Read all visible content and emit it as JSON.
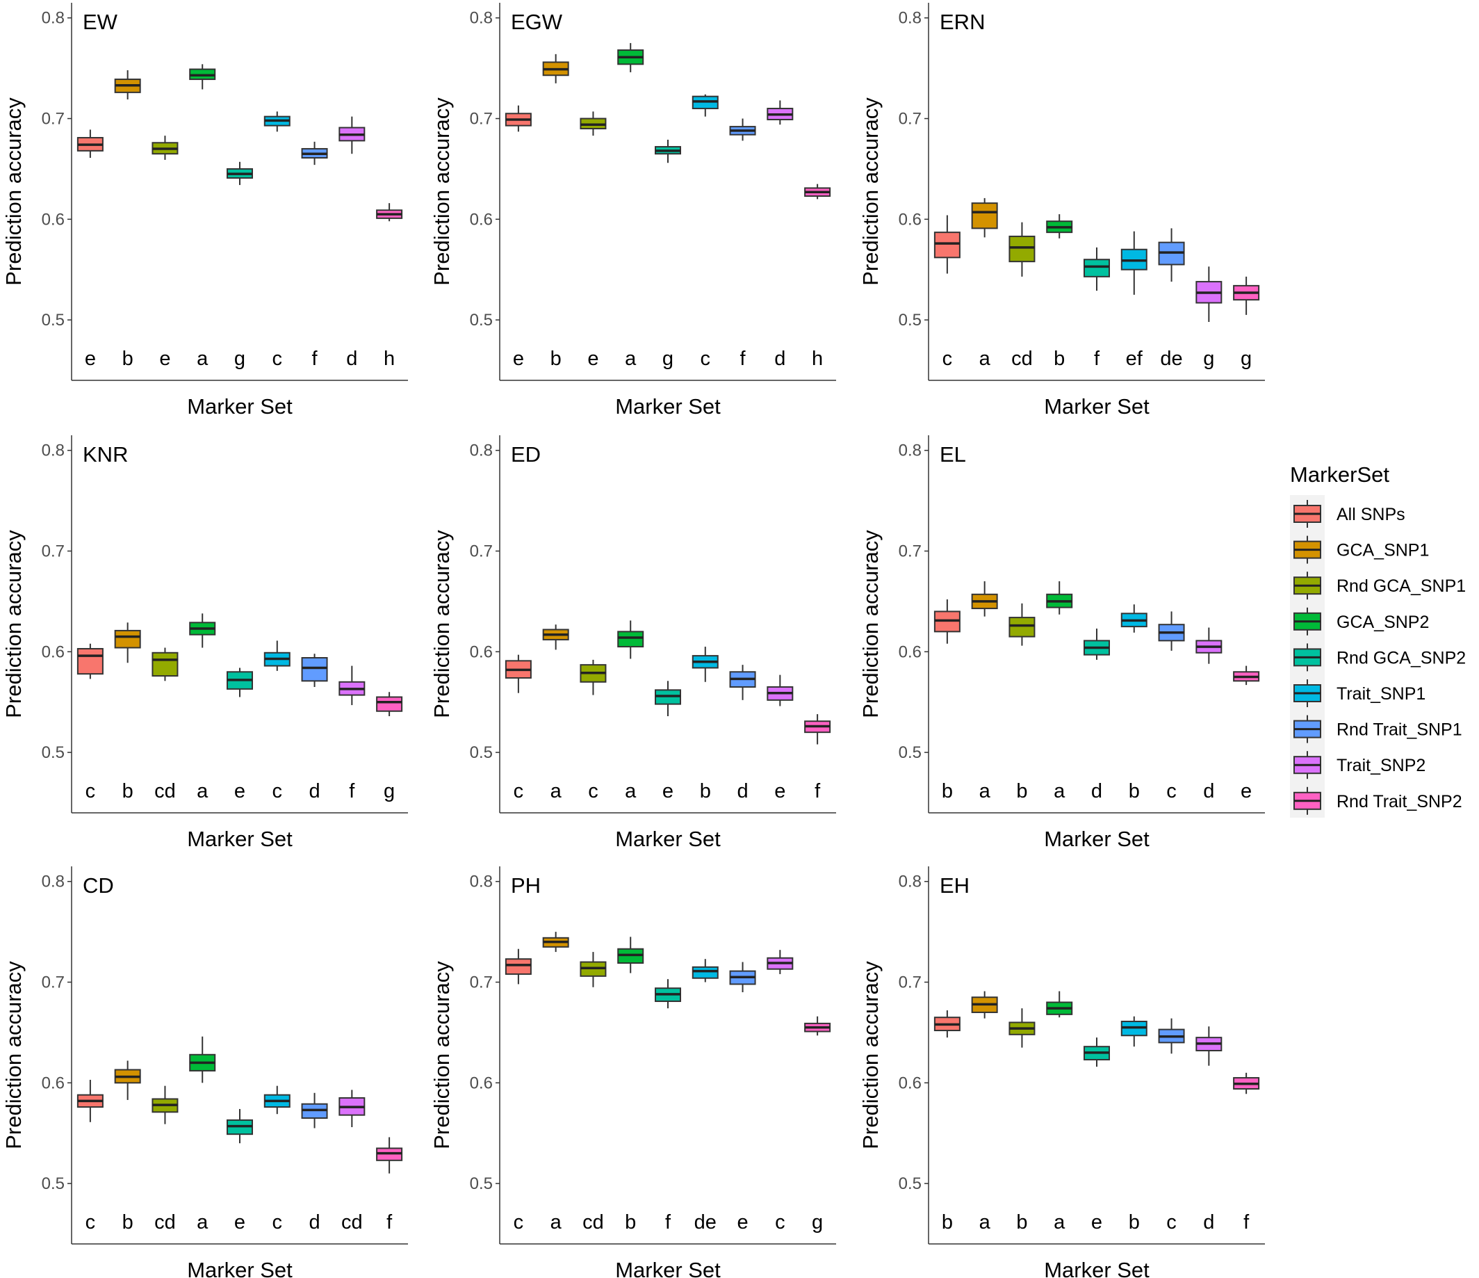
{
  "colors": [
    "#F8766D",
    "#D39200",
    "#93AA00",
    "#00BA38",
    "#00C19F",
    "#00B9E3",
    "#619CFF",
    "#DB72FB",
    "#FF61C3"
  ],
  "legend": {
    "title": "MarkerSet",
    "items": [
      "All SNPs",
      "GCA_SNP1",
      "Rnd GCA_SNP1",
      "GCA_SNP2",
      "Rnd GCA_SNP2",
      "Trait_SNP1",
      "Rnd Trait_SNP1",
      "Trait_SNP2",
      "Rnd Trait_SNP2"
    ]
  },
  "chart_data": [
    {
      "type": "boxplot",
      "title": "EW",
      "xlabel": "Marker Set",
      "ylabel": "Prediction accuracy",
      "ylim": [
        0.44,
        0.815
      ],
      "yticks": [
        0.5,
        0.6,
        0.7,
        0.8
      ],
      "series": [
        {
          "name": "All SNPs",
          "min": 0.661,
          "q1": 0.668,
          "median": 0.674,
          "q3": 0.681,
          "max": 0.689,
          "letter": "e"
        },
        {
          "name": "GCA_SNP1",
          "min": 0.719,
          "q1": 0.726,
          "median": 0.733,
          "q3": 0.739,
          "max": 0.748,
          "letter": "b"
        },
        {
          "name": "Rnd GCA_SNP1",
          "min": 0.659,
          "q1": 0.665,
          "median": 0.67,
          "q3": 0.676,
          "max": 0.683,
          "letter": "e"
        },
        {
          "name": "GCA_SNP2",
          "min": 0.729,
          "q1": 0.739,
          "median": 0.743,
          "q3": 0.749,
          "max": 0.754,
          "letter": "a"
        },
        {
          "name": "Rnd GCA_SNP2",
          "min": 0.634,
          "q1": 0.641,
          "median": 0.645,
          "q3": 0.65,
          "max": 0.657,
          "letter": "g"
        },
        {
          "name": "Trait_SNP1",
          "min": 0.687,
          "q1": 0.693,
          "median": 0.698,
          "q3": 0.702,
          "max": 0.707,
          "letter": "c"
        },
        {
          "name": "Rnd Trait_SNP1",
          "min": 0.654,
          "q1": 0.661,
          "median": 0.665,
          "q3": 0.67,
          "max": 0.677,
          "letter": "f"
        },
        {
          "name": "Trait_SNP2",
          "min": 0.665,
          "q1": 0.678,
          "median": 0.684,
          "q3": 0.691,
          "max": 0.702,
          "letter": "d"
        },
        {
          "name": "Rnd Trait_SNP2",
          "min": 0.598,
          "q1": 0.601,
          "median": 0.605,
          "q3": 0.609,
          "max": 0.616,
          "letter": "h"
        }
      ]
    },
    {
      "type": "boxplot",
      "title": "EGW",
      "xlabel": "Marker Set",
      "ylabel": "Prediction accuracy",
      "ylim": [
        0.44,
        0.815
      ],
      "yticks": [
        0.5,
        0.6,
        0.7,
        0.8
      ],
      "series": [
        {
          "name": "All SNPs",
          "min": 0.687,
          "q1": 0.693,
          "median": 0.699,
          "q3": 0.705,
          "max": 0.713,
          "letter": "e"
        },
        {
          "name": "GCA_SNP1",
          "min": 0.735,
          "q1": 0.743,
          "median": 0.749,
          "q3": 0.756,
          "max": 0.764,
          "letter": "b"
        },
        {
          "name": "Rnd GCA_SNP1",
          "min": 0.683,
          "q1": 0.69,
          "median": 0.694,
          "q3": 0.7,
          "max": 0.707,
          "letter": "e"
        },
        {
          "name": "GCA_SNP2",
          "min": 0.746,
          "q1": 0.754,
          "median": 0.761,
          "q3": 0.768,
          "max": 0.775,
          "letter": "a"
        },
        {
          "name": "Rnd GCA_SNP2",
          "min": 0.656,
          "q1": 0.665,
          "median": 0.668,
          "q3": 0.672,
          "max": 0.679,
          "letter": "g"
        },
        {
          "name": "Trait_SNP1",
          "min": 0.702,
          "q1": 0.71,
          "median": 0.717,
          "q3": 0.722,
          "max": 0.724,
          "letter": "c"
        },
        {
          "name": "Rnd Trait_SNP1",
          "min": 0.678,
          "q1": 0.684,
          "median": 0.688,
          "q3": 0.692,
          "max": 0.7,
          "letter": "f"
        },
        {
          "name": "Trait_SNP2",
          "min": 0.694,
          "q1": 0.699,
          "median": 0.704,
          "q3": 0.71,
          "max": 0.718,
          "letter": "d"
        },
        {
          "name": "Rnd Trait_SNP2",
          "min": 0.62,
          "q1": 0.623,
          "median": 0.627,
          "q3": 0.631,
          "max": 0.635,
          "letter": "h"
        }
      ]
    },
    {
      "type": "boxplot",
      "title": "ERN",
      "xlabel": "Marker Set",
      "ylabel": "Prediction accuracy",
      "ylim": [
        0.44,
        0.815
      ],
      "yticks": [
        0.5,
        0.6,
        0.7,
        0.8
      ],
      "series": [
        {
          "name": "All SNPs",
          "min": 0.546,
          "q1": 0.562,
          "median": 0.576,
          "q3": 0.587,
          "max": 0.604,
          "letter": "c"
        },
        {
          "name": "GCA_SNP1",
          "min": 0.582,
          "q1": 0.591,
          "median": 0.607,
          "q3": 0.616,
          "max": 0.621,
          "letter": "a"
        },
        {
          "name": "Rnd GCA_SNP1",
          "min": 0.543,
          "q1": 0.558,
          "median": 0.572,
          "q3": 0.583,
          "max": 0.597,
          "letter": "cd"
        },
        {
          "name": "GCA_SNP2",
          "min": 0.581,
          "q1": 0.587,
          "median": 0.592,
          "q3": 0.598,
          "max": 0.605,
          "letter": "b"
        },
        {
          "name": "Rnd GCA_SNP2",
          "min": 0.529,
          "q1": 0.543,
          "median": 0.553,
          "q3": 0.56,
          "max": 0.572,
          "letter": "f"
        },
        {
          "name": "Trait_SNP1",
          "min": 0.525,
          "q1": 0.55,
          "median": 0.559,
          "q3": 0.57,
          "max": 0.588,
          "letter": "ef"
        },
        {
          "name": "Rnd Trait_SNP1",
          "min": 0.538,
          "q1": 0.555,
          "median": 0.567,
          "q3": 0.577,
          "max": 0.591,
          "letter": "de"
        },
        {
          "name": "Trait_SNP2",
          "min": 0.498,
          "q1": 0.517,
          "median": 0.527,
          "q3": 0.538,
          "max": 0.553,
          "letter": "g"
        },
        {
          "name": "Rnd Trait_SNP2",
          "min": 0.505,
          "q1": 0.52,
          "median": 0.527,
          "q3": 0.534,
          "max": 0.543,
          "letter": "g"
        }
      ]
    },
    {
      "type": "boxplot",
      "title": "KNR",
      "xlabel": "Marker Set",
      "ylabel": "Prediction accuracy",
      "ylim": [
        0.44,
        0.815
      ],
      "yticks": [
        0.5,
        0.6,
        0.7,
        0.8
      ],
      "series": [
        {
          "name": "All SNPs",
          "min": 0.573,
          "q1": 0.578,
          "median": 0.596,
          "q3": 0.603,
          "max": 0.608,
          "letter": "c"
        },
        {
          "name": "GCA_SNP1",
          "min": 0.589,
          "q1": 0.604,
          "median": 0.615,
          "q3": 0.621,
          "max": 0.629,
          "letter": "b"
        },
        {
          "name": "Rnd GCA_SNP1",
          "min": 0.571,
          "q1": 0.576,
          "median": 0.592,
          "q3": 0.599,
          "max": 0.604,
          "letter": "cd"
        },
        {
          "name": "GCA_SNP2",
          "min": 0.604,
          "q1": 0.617,
          "median": 0.623,
          "q3": 0.629,
          "max": 0.638,
          "letter": "a"
        },
        {
          "name": "Rnd GCA_SNP2",
          "min": 0.555,
          "q1": 0.563,
          "median": 0.572,
          "q3": 0.58,
          "max": 0.584,
          "letter": "e"
        },
        {
          "name": "Trait_SNP1",
          "min": 0.581,
          "q1": 0.586,
          "median": 0.593,
          "q3": 0.599,
          "max": 0.611,
          "letter": "c"
        },
        {
          "name": "Rnd Trait_SNP1",
          "min": 0.565,
          "q1": 0.571,
          "median": 0.584,
          "q3": 0.594,
          "max": 0.598,
          "letter": "d"
        },
        {
          "name": "Trait_SNP2",
          "min": 0.547,
          "q1": 0.557,
          "median": 0.563,
          "q3": 0.57,
          "max": 0.586,
          "letter": "f"
        },
        {
          "name": "Rnd Trait_SNP2",
          "min": 0.536,
          "q1": 0.541,
          "median": 0.55,
          "q3": 0.555,
          "max": 0.56,
          "letter": "g"
        }
      ]
    },
    {
      "type": "boxplot",
      "title": "ED",
      "xlabel": "Marker Set",
      "ylabel": "Prediction accuracy",
      "ylim": [
        0.44,
        0.815
      ],
      "yticks": [
        0.5,
        0.6,
        0.7,
        0.8
      ],
      "series": [
        {
          "name": "All SNPs",
          "min": 0.559,
          "q1": 0.574,
          "median": 0.582,
          "q3": 0.591,
          "max": 0.597,
          "letter": "c"
        },
        {
          "name": "GCA_SNP1",
          "min": 0.602,
          "q1": 0.612,
          "median": 0.617,
          "q3": 0.622,
          "max": 0.627,
          "letter": "a"
        },
        {
          "name": "Rnd GCA_SNP1",
          "min": 0.557,
          "q1": 0.57,
          "median": 0.579,
          "q3": 0.587,
          "max": 0.592,
          "letter": "c"
        },
        {
          "name": "GCA_SNP2",
          "min": 0.593,
          "q1": 0.605,
          "median": 0.614,
          "q3": 0.62,
          "max": 0.631,
          "letter": "a"
        },
        {
          "name": "Rnd GCA_SNP2",
          "min": 0.536,
          "q1": 0.548,
          "median": 0.556,
          "q3": 0.562,
          "max": 0.571,
          "letter": "e"
        },
        {
          "name": "Trait_SNP1",
          "min": 0.57,
          "q1": 0.584,
          "median": 0.59,
          "q3": 0.596,
          "max": 0.605,
          "letter": "b"
        },
        {
          "name": "Rnd Trait_SNP1",
          "min": 0.552,
          "q1": 0.565,
          "median": 0.573,
          "q3": 0.58,
          "max": 0.587,
          "letter": "d"
        },
        {
          "name": "Trait_SNP2",
          "min": 0.546,
          "q1": 0.552,
          "median": 0.559,
          "q3": 0.565,
          "max": 0.577,
          "letter": "e"
        },
        {
          "name": "Rnd Trait_SNP2",
          "min": 0.508,
          "q1": 0.52,
          "median": 0.526,
          "q3": 0.531,
          "max": 0.538,
          "letter": "f"
        }
      ]
    },
    {
      "type": "boxplot",
      "title": "EL",
      "xlabel": "Marker Set",
      "ylabel": "Prediction accuracy",
      "ylim": [
        0.44,
        0.815
      ],
      "yticks": [
        0.5,
        0.6,
        0.7,
        0.8
      ],
      "series": [
        {
          "name": "All SNPs",
          "min": 0.608,
          "q1": 0.62,
          "median": 0.631,
          "q3": 0.64,
          "max": 0.652,
          "letter": "b"
        },
        {
          "name": "GCA_SNP1",
          "min": 0.635,
          "q1": 0.643,
          "median": 0.65,
          "q3": 0.657,
          "max": 0.67,
          "letter": "a"
        },
        {
          "name": "Rnd GCA_SNP1",
          "min": 0.606,
          "q1": 0.615,
          "median": 0.626,
          "q3": 0.634,
          "max": 0.648,
          "letter": "b"
        },
        {
          "name": "GCA_SNP2",
          "min": 0.637,
          "q1": 0.644,
          "median": 0.65,
          "q3": 0.657,
          "max": 0.67,
          "letter": "a"
        },
        {
          "name": "Rnd GCA_SNP2",
          "min": 0.592,
          "q1": 0.597,
          "median": 0.604,
          "q3": 0.611,
          "max": 0.623,
          "letter": "d"
        },
        {
          "name": "Trait_SNP1",
          "min": 0.619,
          "q1": 0.625,
          "median": 0.631,
          "q3": 0.638,
          "max": 0.647,
          "letter": "b"
        },
        {
          "name": "Rnd Trait_SNP1",
          "min": 0.601,
          "q1": 0.611,
          "median": 0.619,
          "q3": 0.627,
          "max": 0.64,
          "letter": "c"
        },
        {
          "name": "Trait_SNP2",
          "min": 0.588,
          "q1": 0.599,
          "median": 0.605,
          "q3": 0.611,
          "max": 0.624,
          "letter": "d"
        },
        {
          "name": "Rnd Trait_SNP2",
          "min": 0.567,
          "q1": 0.571,
          "median": 0.575,
          "q3": 0.58,
          "max": 0.586,
          "letter": "e"
        }
      ]
    },
    {
      "type": "boxplot",
      "title": "CD",
      "xlabel": "Marker Set",
      "ylabel": "Prediction accuracy",
      "ylim": [
        0.44,
        0.815
      ],
      "yticks": [
        0.5,
        0.6,
        0.7,
        0.8
      ],
      "series": [
        {
          "name": "All SNPs",
          "min": 0.561,
          "q1": 0.576,
          "median": 0.582,
          "q3": 0.588,
          "max": 0.603,
          "letter": "c"
        },
        {
          "name": "GCA_SNP1",
          "min": 0.583,
          "q1": 0.6,
          "median": 0.606,
          "q3": 0.613,
          "max": 0.622,
          "letter": "b"
        },
        {
          "name": "Rnd GCA_SNP1",
          "min": 0.559,
          "q1": 0.571,
          "median": 0.578,
          "q3": 0.584,
          "max": 0.597,
          "letter": "cd"
        },
        {
          "name": "GCA_SNP2",
          "min": 0.6,
          "q1": 0.612,
          "median": 0.62,
          "q3": 0.628,
          "max": 0.646,
          "letter": "a"
        },
        {
          "name": "Rnd GCA_SNP2",
          "min": 0.54,
          "q1": 0.549,
          "median": 0.557,
          "q3": 0.563,
          "max": 0.574,
          "letter": "e"
        },
        {
          "name": "Trait_SNP1",
          "min": 0.569,
          "q1": 0.576,
          "median": 0.582,
          "q3": 0.588,
          "max": 0.597,
          "letter": "c"
        },
        {
          "name": "Rnd Trait_SNP1",
          "min": 0.555,
          "q1": 0.565,
          "median": 0.573,
          "q3": 0.579,
          "max": 0.59,
          "letter": "d"
        },
        {
          "name": "Trait_SNP2",
          "min": 0.556,
          "q1": 0.568,
          "median": 0.576,
          "q3": 0.585,
          "max": 0.593,
          "letter": "cd"
        },
        {
          "name": "Rnd Trait_SNP2",
          "min": 0.51,
          "q1": 0.523,
          "median": 0.53,
          "q3": 0.535,
          "max": 0.546,
          "letter": "f"
        }
      ]
    },
    {
      "type": "boxplot",
      "title": "PH",
      "xlabel": "Marker Set",
      "ylabel": "Prediction accuracy",
      "ylim": [
        0.44,
        0.815
      ],
      "yticks": [
        0.5,
        0.6,
        0.7,
        0.8
      ],
      "series": [
        {
          "name": "All SNPs",
          "min": 0.698,
          "q1": 0.708,
          "median": 0.717,
          "q3": 0.723,
          "max": 0.733,
          "letter": "c"
        },
        {
          "name": "GCA_SNP1",
          "min": 0.73,
          "q1": 0.735,
          "median": 0.74,
          "q3": 0.744,
          "max": 0.75,
          "letter": "a"
        },
        {
          "name": "Rnd GCA_SNP1",
          "min": 0.695,
          "q1": 0.706,
          "median": 0.714,
          "q3": 0.72,
          "max": 0.73,
          "letter": "cd"
        },
        {
          "name": "GCA_SNP2",
          "min": 0.709,
          "q1": 0.719,
          "median": 0.727,
          "q3": 0.733,
          "max": 0.745,
          "letter": "b"
        },
        {
          "name": "Rnd GCA_SNP2",
          "min": 0.674,
          "q1": 0.681,
          "median": 0.688,
          "q3": 0.694,
          "max": 0.703,
          "letter": "f"
        },
        {
          "name": "Trait_SNP1",
          "min": 0.7,
          "q1": 0.704,
          "median": 0.711,
          "q3": 0.715,
          "max": 0.723,
          "letter": "de"
        },
        {
          "name": "Rnd Trait_SNP1",
          "min": 0.69,
          "q1": 0.698,
          "median": 0.705,
          "q3": 0.711,
          "max": 0.72,
          "letter": "e"
        },
        {
          "name": "Trait_SNP2",
          "min": 0.708,
          "q1": 0.713,
          "median": 0.719,
          "q3": 0.724,
          "max": 0.732,
          "letter": "c"
        },
        {
          "name": "Rnd Trait_SNP2",
          "min": 0.647,
          "q1": 0.651,
          "median": 0.655,
          "q3": 0.659,
          "max": 0.666,
          "letter": "g"
        }
      ]
    },
    {
      "type": "boxplot",
      "title": "EH",
      "xlabel": "Marker Set",
      "ylabel": "Prediction accuracy",
      "ylim": [
        0.44,
        0.815
      ],
      "yticks": [
        0.5,
        0.6,
        0.7,
        0.8
      ],
      "series": [
        {
          "name": "All SNPs",
          "min": 0.645,
          "q1": 0.652,
          "median": 0.658,
          "q3": 0.665,
          "max": 0.672,
          "letter": "b"
        },
        {
          "name": "GCA_SNP1",
          "min": 0.664,
          "q1": 0.67,
          "median": 0.678,
          "q3": 0.685,
          "max": 0.691,
          "letter": "a"
        },
        {
          "name": "Rnd GCA_SNP1",
          "min": 0.635,
          "q1": 0.648,
          "median": 0.654,
          "q3": 0.66,
          "max": 0.674,
          "letter": "b"
        },
        {
          "name": "GCA_SNP2",
          "min": 0.665,
          "q1": 0.668,
          "median": 0.674,
          "q3": 0.68,
          "max": 0.691,
          "letter": "a"
        },
        {
          "name": "Rnd GCA_SNP2",
          "min": 0.616,
          "q1": 0.623,
          "median": 0.63,
          "q3": 0.636,
          "max": 0.645,
          "letter": "e"
        },
        {
          "name": "Trait_SNP1",
          "min": 0.636,
          "q1": 0.647,
          "median": 0.655,
          "q3": 0.661,
          "max": 0.666,
          "letter": "b"
        },
        {
          "name": "Rnd Trait_SNP1",
          "min": 0.629,
          "q1": 0.64,
          "median": 0.646,
          "q3": 0.653,
          "max": 0.664,
          "letter": "c"
        },
        {
          "name": "Trait_SNP2",
          "min": 0.617,
          "q1": 0.632,
          "median": 0.639,
          "q3": 0.645,
          "max": 0.656,
          "letter": "d"
        },
        {
          "name": "Rnd Trait_SNP2",
          "min": 0.589,
          "q1": 0.594,
          "median": 0.599,
          "q3": 0.605,
          "max": 0.61,
          "letter": "f"
        }
      ]
    }
  ]
}
